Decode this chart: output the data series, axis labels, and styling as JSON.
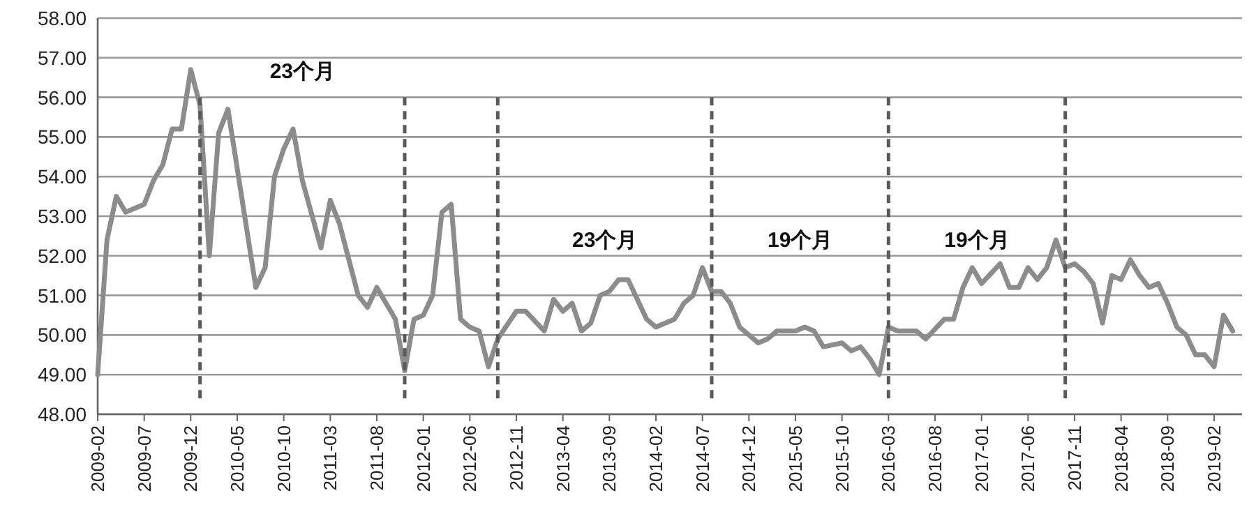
{
  "chart_data": {
    "type": "line",
    "x": [
      "2009-02",
      "2009-03",
      "2009-04",
      "2009-05",
      "2009-07",
      "2009-08",
      "2009-09",
      "2009-10",
      "2009-11",
      "2009-12",
      "2010-01",
      "2010-02",
      "2010-03",
      "2010-04",
      "2010-07",
      "2010-08",
      "2010-09",
      "2010-10",
      "2010-11",
      "2010-12",
      "2011-02",
      "2011-03",
      "2011-04",
      "2011-06",
      "2011-07",
      "2011-08",
      "2011-10",
      "2011-11",
      "2011-12",
      "2012-01",
      "2012-02",
      "2012-03",
      "2012-04",
      "2012-05",
      "2012-06",
      "2012-07",
      "2012-08",
      "2012-09",
      "2012-11",
      "2012-12",
      "2013-02",
      "2013-03",
      "2013-04",
      "2013-05",
      "2013-06",
      "2013-07",
      "2013-08",
      "2013-09",
      "2013-10",
      "2013-11",
      "2013-12",
      "2014-01",
      "2014-02",
      "2014-04",
      "2014-05",
      "2014-06",
      "2014-07",
      "2014-08",
      "2014-09",
      "2014-10",
      "2014-11",
      "2015-01",
      "2015-02",
      "2015-03",
      "2015-05",
      "2015-06",
      "2015-07",
      "2015-08",
      "2015-10",
      "2015-11",
      "2015-12",
      "2016-01",
      "2016-02",
      "2016-03",
      "2016-04",
      "2016-06",
      "2016-07",
      "2016-09",
      "2016-10",
      "2016-11",
      "2016-12",
      "2017-01",
      "2017-03",
      "2017-04",
      "2017-05",
      "2017-06",
      "2017-07",
      "2017-08",
      "2017-09",
      "2017-10",
      "2017-11",
      "2017-12",
      "2018-01",
      "2018-02",
      "2018-03",
      "2018-04",
      "2018-05",
      "2018-06",
      "2018-07",
      "2018-08",
      "2018-09",
      "2018-10",
      "2018-11",
      "2018-12",
      "2019-01",
      "2019-02",
      "2019-03",
      "2019-04"
    ],
    "series": [
      {
        "color": "#8c8c8c",
        "values": [
          49.0,
          52.4,
          53.5,
          53.1,
          53.3,
          53.9,
          54.3,
          55.2,
          55.2,
          56.7,
          55.8,
          52.0,
          55.1,
          55.7,
          51.2,
          51.7,
          54.0,
          54.7,
          55.2,
          53.9,
          52.2,
          53.4,
          52.8,
          51.0,
          50.7,
          51.2,
          50.4,
          49.1,
          50.4,
          50.5,
          51.0,
          53.1,
          53.3,
          50.4,
          50.2,
          50.1,
          49.2,
          49.9,
          50.6,
          50.6,
          50.1,
          50.9,
          50.6,
          50.8,
          50.1,
          50.3,
          51.0,
          51.1,
          51.4,
          51.4,
          50.9,
          50.4,
          50.2,
          50.4,
          50.8,
          51.0,
          51.7,
          51.1,
          51.1,
          50.8,
          50.2,
          49.8,
          49.9,
          50.1,
          50.1,
          50.2,
          50.1,
          49.7,
          49.8,
          49.6,
          49.7,
          49.4,
          49.0,
          50.2,
          50.1,
          50.1,
          49.9,
          50.4,
          50.4,
          51.2,
          51.7,
          51.3,
          51.8,
          51.2,
          51.2,
          51.7,
          51.4,
          51.7,
          52.4,
          51.7,
          51.8,
          51.6,
          51.3,
          50.3,
          51.5,
          51.4,
          51.9,
          51.5,
          51.2,
          51.3,
          50.8,
          50.2,
          50.0,
          49.5,
          49.5,
          49.2,
          50.5,
          50.1
        ]
      }
    ],
    "xlim": [
      "2009-02",
      "2019-05"
    ],
    "xticks": [
      "2009-02",
      "2009-07",
      "2009-12",
      "2010-05",
      "2010-10",
      "2011-03",
      "2011-08",
      "2012-01",
      "2012-06",
      "2012-11",
      "2013-04",
      "2013-09",
      "2014-02",
      "2014-07",
      "2014-12",
      "2015-05",
      "2015-10",
      "2016-03",
      "2016-08",
      "2017-01",
      "2017-06",
      "2017-11",
      "2018-04",
      "2018-09",
      "2019-02"
    ],
    "ylim": [
      48,
      58
    ],
    "yticks": [
      {
        "value": 48,
        "label": "48.00"
      },
      {
        "value": 49,
        "label": "49.00"
      },
      {
        "value": 50,
        "label": "50.00"
      },
      {
        "value": 51,
        "label": "51.00"
      },
      {
        "value": 52,
        "label": "52.00"
      },
      {
        "value": 53,
        "label": "53.00"
      },
      {
        "value": 54,
        "label": "54.00"
      },
      {
        "value": 55,
        "label": "55.00"
      },
      {
        "value": 56,
        "label": "56.00"
      },
      {
        "value": 57,
        "label": "57.00"
      },
      {
        "value": 58,
        "label": "58.00"
      }
    ],
    "grid": "y",
    "line_style": "solid",
    "ref_lines": [
      {
        "axis": "x",
        "value": "2010-01",
        "color": "#5a5a5a",
        "line_style": "dashed"
      },
      {
        "axis": "x",
        "value": "2011-11",
        "color": "#5a5a5a",
        "line_style": "dashed"
      },
      {
        "axis": "x",
        "value": "2012-09",
        "color": "#5a5a5a",
        "line_style": "dashed"
      },
      {
        "axis": "x",
        "value": "2014-08",
        "color": "#5a5a5a",
        "line_style": "dashed"
      },
      {
        "axis": "x",
        "value": "2016-03",
        "color": "#5a5a5a",
        "line_style": "dashed"
      },
      {
        "axis": "x",
        "value": "2017-10",
        "color": "#5a5a5a",
        "line_style": "dashed"
      }
    ],
    "annotations": [
      "23个月",
      "23个月",
      "19个月",
      "19个月"
    ]
  }
}
